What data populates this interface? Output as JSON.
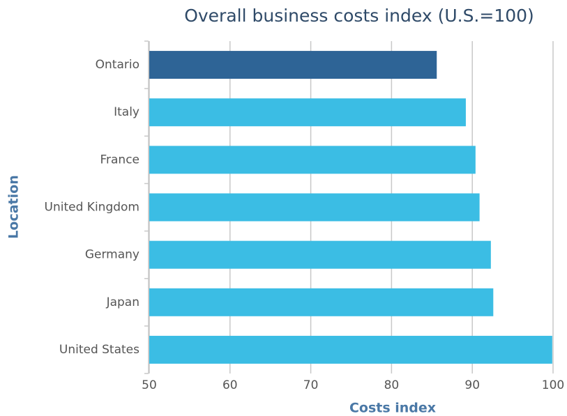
{
  "chart_data": {
    "type": "hbar",
    "title": "Overall business costs index (U.S.=100)",
    "x_label": "Costs index",
    "y_label": "Location",
    "categories": [
      "Ontario",
      "Italy",
      "France",
      "United Kingdom",
      "Germany",
      "Japan",
      "United States"
    ],
    "values": [
      85.6,
      89.2,
      90.4,
      90.9,
      92.3,
      92.6,
      99.9
    ],
    "colors": [
      "#2e6496",
      "#3bbde4",
      "#3bbde4",
      "#3bbde4",
      "#3bbde4",
      "#3bbde4",
      "#3bbde4"
    ],
    "xlim": [
      50,
      100
    ],
    "xticks": [
      50,
      60,
      70,
      80,
      90,
      100
    ],
    "grid": true
  }
}
